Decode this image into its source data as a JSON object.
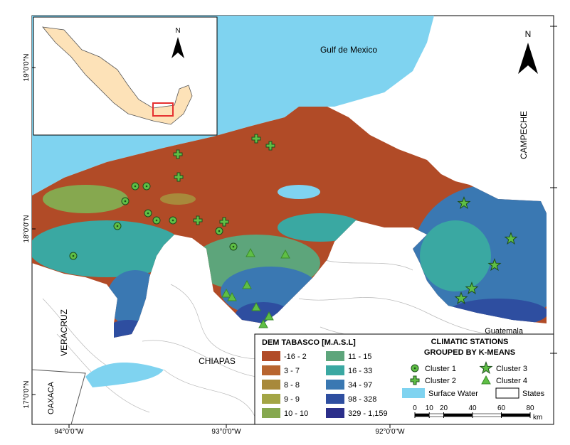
{
  "map": {
    "labels": {
      "gulf": "Gulf de Mexico",
      "campeche": "CAMPECHE",
      "guatemala": "Guatemala",
      "veracruz": "VERACRUZ",
      "chiapas": "CHIAPAS",
      "oaxaca": "OAXACA"
    },
    "north": "N",
    "inset_north": "N",
    "lat_ticks": [
      "19°0'0\"N",
      "18°0'0\"N",
      "17°0'0\"N"
    ],
    "lon_ticks": [
      "94°0'0\"W",
      "93°0'0\"W",
      "92°0'0\"W"
    ]
  },
  "legend": {
    "dem_title": "DEM TABASCO  [M.A.S.L]",
    "dem_classes": [
      {
        "label": "-16 - 2",
        "color": "#b14b27"
      },
      {
        "label": "3 - 7",
        "color": "#b8652f"
      },
      {
        "label": "8 - 8",
        "color": "#a8893b"
      },
      {
        "label": "9 - 9",
        "color": "#a3a545"
      },
      {
        "label": "10 - 10",
        "color": "#86a84f"
      },
      {
        "label": "11 - 15",
        "color": "#5da57b"
      },
      {
        "label": "16 - 33",
        "color": "#3aa8a2"
      },
      {
        "label": "34 - 97",
        "color": "#3a78b2"
      },
      {
        "label": "98 - 328",
        "color": "#2e4ea0"
      },
      {
        "label": "329 - 1,159",
        "color": "#2b2e8a"
      }
    ],
    "stations_title": [
      "CLIMATIC STATIONS",
      "GROUPED BY K-MEANS"
    ],
    "clusters": [
      "Cluster 1",
      "Cluster 2",
      "Cluster 3",
      "Cluster 4"
    ],
    "surface_water": "Surface Water",
    "states": "States",
    "scale_ticks": [
      0,
      10,
      20,
      40,
      60,
      80
    ],
    "scale_unit": "km"
  }
}
